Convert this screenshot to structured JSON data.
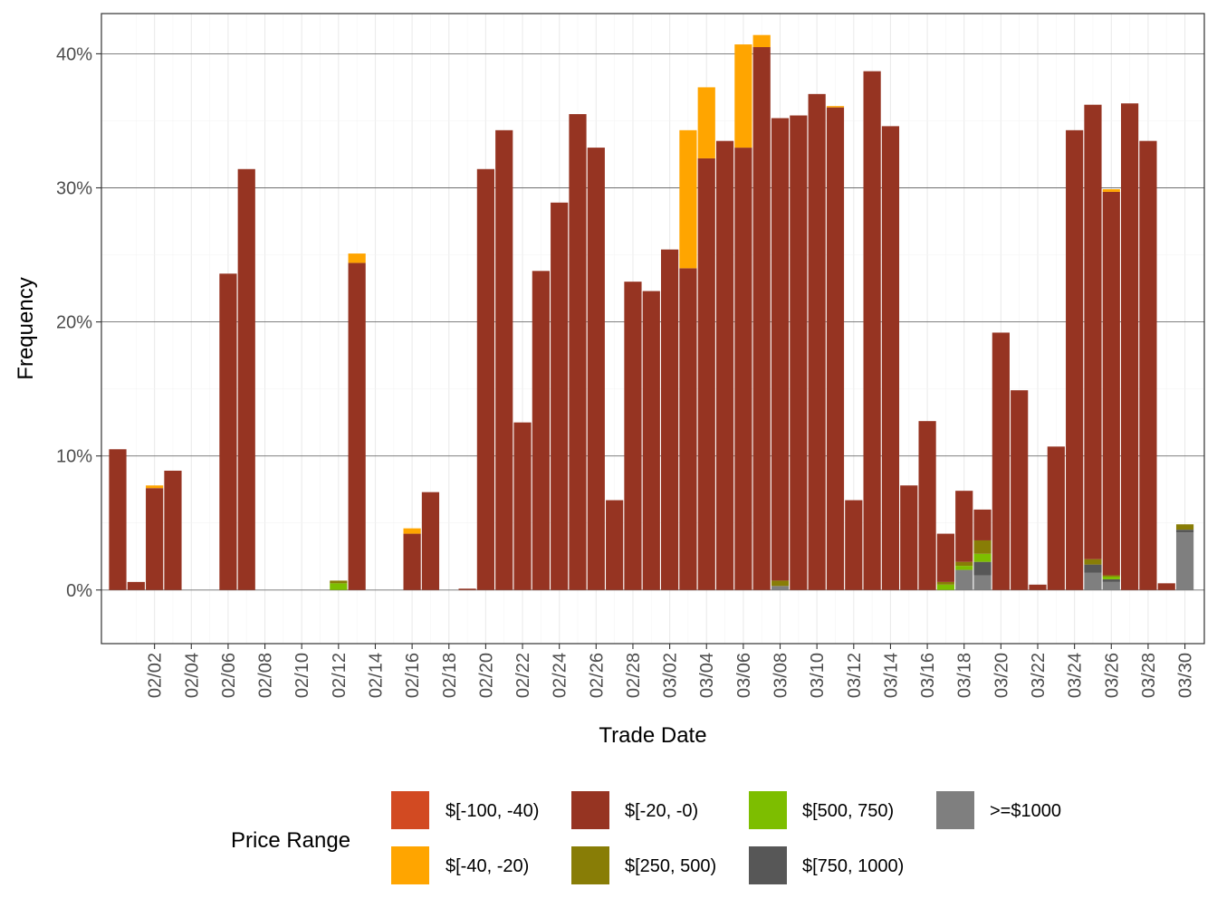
{
  "chart_data": {
    "type": "bar",
    "stacked": true,
    "xlabel": "Trade Date",
    "ylabel": "Frequency",
    "ylim": [
      -4,
      43
    ],
    "y_ticks": [
      0,
      10,
      20,
      30,
      40
    ],
    "y_tick_labels": [
      "0%",
      "10%",
      "20%",
      "30%",
      "40%"
    ],
    "x_tick_labels": [
      "02/02",
      "02/04",
      "02/06",
      "02/08",
      "02/10",
      "02/12",
      "02/14",
      "02/16",
      "02/18",
      "02/20",
      "02/22",
      "02/24",
      "02/26",
      "02/28",
      "03/02",
      "03/04",
      "03/06",
      "03/08",
      "03/10",
      "03/12",
      "03/14",
      "03/16",
      "03/18",
      "03/20",
      "03/22",
      "03/24",
      "03/26",
      "03/28",
      "03/30"
    ],
    "grid": true,
    "legend_position": "bottom",
    "legend_title": "Price Range",
    "colors": {
      "n100_40": "#D24A22",
      "n40_20": "#FFA500",
      "n20_0": "#963422",
      "p250_500": "#887D06",
      "p500_750": "#7DBE00",
      "p750_1000": "#575757",
      ">=1000": "#7F7F7F"
    },
    "legend": [
      {
        "key": "n100_40",
        "label": "$[-100, -40)"
      },
      {
        "key": "n40_20",
        "label": "$[-40, -20)"
      },
      {
        "key": "n20_0",
        "label": "$[-20, -0)"
      },
      {
        "key": "p250_500",
        "label": "$[250, 500)"
      },
      {
        "key": "p500_750",
        "label": "$[500, 750)"
      },
      {
        "key": "p750_1000",
        "label": "$[750, 1000)"
      },
      {
        "key": ">=1000",
        "label": ">=$1000"
      }
    ],
    "stack_order": [
      ">=1000",
      "p750_1000",
      "p500_750",
      "p250_500",
      "n20_0",
      "n40_20",
      "n100_40"
    ],
    "bars": [
      {
        "date": "01/31",
        "n20_0": 10.5
      },
      {
        "date": "02/01",
        "n20_0": 0.6
      },
      {
        "date": "02/02",
        "n20_0": 7.6,
        "n40_20": 0.2
      },
      {
        "date": "02/03",
        "n20_0": 8.9
      },
      {
        "date": "02/06",
        "n20_0": 23.6
      },
      {
        "date": "02/07",
        "n20_0": 31.4
      },
      {
        "date": "02/12",
        "p500_750": 0.5,
        "p250_500": 0.2
      },
      {
        "date": "02/13",
        "n20_0": 24.4,
        "n40_20": 0.7
      },
      {
        "date": "02/16",
        "n20_0": 4.2,
        "n40_20": 0.4
      },
      {
        "date": "02/17",
        "n20_0": 7.3
      },
      {
        "date": "02/19",
        "n20_0": 0.1
      },
      {
        "date": "02/20",
        "n20_0": 31.4
      },
      {
        "date": "02/21",
        "n20_0": 34.3
      },
      {
        "date": "02/22",
        "n20_0": 12.5
      },
      {
        "date": "02/23",
        "n20_0": 23.8
      },
      {
        "date": "02/24",
        "n20_0": 28.9
      },
      {
        "date": "02/25",
        "n20_0": 35.5
      },
      {
        "date": "02/26",
        "n20_0": 33.0
      },
      {
        "date": "02/27",
        "n20_0": 6.7
      },
      {
        "date": "02/28",
        "n20_0": 23.0
      },
      {
        "date": "03/01",
        "n20_0": 22.3
      },
      {
        "date": "03/02",
        "n20_0": 25.4
      },
      {
        "date": "03/03",
        "n20_0": 24.0,
        "n40_20": 10.3
      },
      {
        "date": "03/04",
        "n20_0": 32.2,
        "n40_20": 5.3
      },
      {
        "date": "03/05",
        "n20_0": 33.5
      },
      {
        "date": "03/06",
        "n20_0": 33.0,
        "n40_20": 7.7
      },
      {
        "date": "03/07",
        "n20_0": 40.5,
        "n40_20": 0.9
      },
      {
        "date": "03/08",
        ">=1000": 0.3,
        "p250_500": 0.4,
        "n20_0": 34.5
      },
      {
        "date": "03/09",
        "n20_0": 35.4
      },
      {
        "date": "03/10",
        "n20_0": 37.0
      },
      {
        "date": "03/11",
        "n20_0": 36.0,
        "n40_20": 0.1
      },
      {
        "date": "03/12",
        "n20_0": 6.7
      },
      {
        "date": "03/13",
        "n20_0": 38.7
      },
      {
        "date": "03/14",
        "n20_0": 34.6
      },
      {
        "date": "03/15",
        "n20_0": 7.8
      },
      {
        "date": "03/16",
        "n20_0": 12.6
      },
      {
        "date": "03/17",
        "p500_750": 0.4,
        "p250_500": 0.2,
        "n20_0": 3.6
      },
      {
        "date": "03/18",
        ">=1000": 1.5,
        "p500_750": 0.3,
        "p250_500": 0.3,
        "n20_0": 5.3
      },
      {
        "date": "03/19",
        ">=1000": 1.1,
        "p750_1000": 1.0,
        "p500_750": 0.6,
        "p250_500": 1.0,
        "n20_0": 2.3
      },
      {
        "date": "03/20",
        "n20_0": 19.2
      },
      {
        "date": "03/21",
        "n20_0": 14.9
      },
      {
        "date": "03/22",
        "n20_0": 0.4
      },
      {
        "date": "03/23",
        "n20_0": 10.7
      },
      {
        "date": "03/24",
        "n20_0": 34.3
      },
      {
        "date": "03/25",
        ">=1000": 1.3,
        "p750_1000": 0.6,
        "p250_500": 0.4,
        "n20_0": 33.9
      },
      {
        "date": "03/26",
        ">=1000": 0.6,
        "p750_1000": 0.2,
        "p500_750": 0.2,
        "p250_500": 0.1,
        "n20_0": 28.6,
        "n40_20": 0.2
      },
      {
        "date": "03/27",
        "n20_0": 36.3
      },
      {
        "date": "03/28",
        "n20_0": 33.5
      },
      {
        "date": "03/29",
        "n20_0": 0.5
      },
      {
        "date": "03/30",
        ">=1000": 4.3,
        "p750_1000": 0.2,
        "p250_500": 0.4
      }
    ]
  }
}
